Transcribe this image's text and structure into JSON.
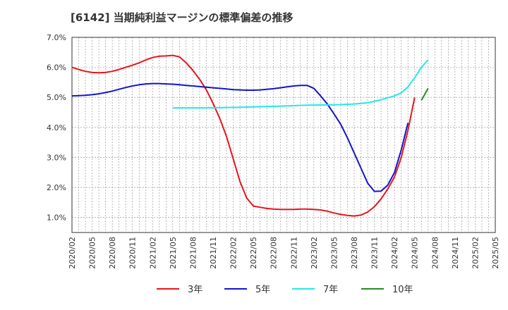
{
  "chart_data": {
    "type": "line",
    "title": "[6142]  当期純利益マージンの標準偏差の推移",
    "xlabel": "",
    "ylabel": "",
    "ylim": [
      0.5,
      7.0
    ],
    "y_ticks": [
      "1.0%",
      "2.0%",
      "3.0%",
      "4.0%",
      "5.0%",
      "6.0%",
      "7.0%"
    ],
    "x_ticks": [
      "2020/02",
      "2020/05",
      "2020/08",
      "2020/11",
      "2021/02",
      "2021/05",
      "2021/08",
      "2021/11",
      "2022/02",
      "2022/05",
      "2022/08",
      "2022/11",
      "2023/02",
      "2023/05",
      "2023/08",
      "2023/11",
      "2024/02",
      "2024/05",
      "2024/08",
      "2024/11",
      "2025/02",
      "2025/05"
    ],
    "grid": true,
    "legend_position": "bottom",
    "series": [
      {
        "name": "3年",
        "color": "#e8141b",
        "points": [
          [
            0,
            6.0
          ],
          [
            1,
            5.93
          ],
          [
            2,
            5.87
          ],
          [
            3,
            5.83
          ],
          [
            4,
            5.82
          ],
          [
            5,
            5.83
          ],
          [
            6,
            5.87
          ],
          [
            7,
            5.93
          ],
          [
            8,
            6.0
          ],
          [
            9,
            6.07
          ],
          [
            10,
            6.15
          ],
          [
            11,
            6.25
          ],
          [
            12,
            6.33
          ],
          [
            13,
            6.37
          ],
          [
            14,
            6.38
          ],
          [
            15,
            6.4
          ],
          [
            16,
            6.35
          ],
          [
            17,
            6.15
          ],
          [
            18,
            5.9
          ],
          [
            19,
            5.6
          ],
          [
            20,
            5.25
          ],
          [
            21,
            4.8
          ],
          [
            22,
            4.3
          ],
          [
            23,
            3.7
          ],
          [
            24,
            2.95
          ],
          [
            25,
            2.2
          ],
          [
            26,
            1.65
          ],
          [
            27,
            1.38
          ],
          [
            28,
            1.34
          ],
          [
            29,
            1.3
          ],
          [
            30,
            1.28
          ],
          [
            31,
            1.27
          ],
          [
            32,
            1.27
          ],
          [
            33,
            1.27
          ],
          [
            34,
            1.28
          ],
          [
            35,
            1.28
          ],
          [
            36,
            1.27
          ],
          [
            37,
            1.25
          ],
          [
            38,
            1.21
          ],
          [
            39,
            1.15
          ],
          [
            40,
            1.1
          ],
          [
            41,
            1.07
          ],
          [
            42,
            1.05
          ],
          [
            43,
            1.08
          ],
          [
            44,
            1.18
          ],
          [
            45,
            1.36
          ],
          [
            46,
            1.62
          ],
          [
            47,
            1.95
          ],
          [
            48,
            2.35
          ],
          [
            49,
            3.0
          ],
          [
            50,
            3.9
          ],
          [
            51,
            5.0
          ]
        ]
      },
      {
        "name": "5年",
        "color": "#1414c8",
        "points": [
          [
            0,
            5.05
          ],
          [
            1,
            5.06
          ],
          [
            2,
            5.07
          ],
          [
            3,
            5.09
          ],
          [
            4,
            5.12
          ],
          [
            5,
            5.16
          ],
          [
            6,
            5.21
          ],
          [
            7,
            5.27
          ],
          [
            8,
            5.33
          ],
          [
            9,
            5.38
          ],
          [
            10,
            5.42
          ],
          [
            11,
            5.45
          ],
          [
            12,
            5.46
          ],
          [
            13,
            5.46
          ],
          [
            14,
            5.45
          ],
          [
            15,
            5.44
          ],
          [
            16,
            5.42
          ],
          [
            17,
            5.4
          ],
          [
            18,
            5.38
          ],
          [
            19,
            5.36
          ],
          [
            20,
            5.34
          ],
          [
            21,
            5.32
          ],
          [
            22,
            5.3
          ],
          [
            23,
            5.28
          ],
          [
            24,
            5.26
          ],
          [
            25,
            5.25
          ],
          [
            26,
            5.24
          ],
          [
            27,
            5.24
          ],
          [
            28,
            5.25
          ],
          [
            29,
            5.27
          ],
          [
            30,
            5.29
          ],
          [
            31,
            5.32
          ],
          [
            32,
            5.35
          ],
          [
            33,
            5.38
          ],
          [
            34,
            5.4
          ],
          [
            35,
            5.4
          ],
          [
            36,
            5.3
          ],
          [
            37,
            5.05
          ],
          [
            38,
            4.78
          ],
          [
            39,
            4.45
          ],
          [
            40,
            4.1
          ],
          [
            41,
            3.65
          ],
          [
            42,
            3.15
          ],
          [
            43,
            2.65
          ],
          [
            44,
            2.15
          ],
          [
            45,
            1.87
          ],
          [
            46,
            1.88
          ],
          [
            47,
            2.08
          ],
          [
            48,
            2.5
          ],
          [
            49,
            3.25
          ],
          [
            50,
            4.15
          ]
        ]
      },
      {
        "name": "7年",
        "color": "#23e8e8",
        "points": [
          [
            15,
            4.65
          ],
          [
            20,
            4.65
          ],
          [
            25,
            4.67
          ],
          [
            30,
            4.7
          ],
          [
            35,
            4.74
          ],
          [
            38,
            4.75
          ],
          [
            40,
            4.76
          ],
          [
            42,
            4.78
          ],
          [
            44,
            4.82
          ],
          [
            46,
            4.92
          ],
          [
            48,
            5.05
          ],
          [
            49,
            5.15
          ],
          [
            50,
            5.35
          ],
          [
            51,
            5.65
          ],
          [
            52,
            6.0
          ],
          [
            53,
            6.25
          ]
        ]
      },
      {
        "name": "10年",
        "color": "#2a8a2a",
        "points": [
          [
            52,
            4.9
          ],
          [
            53,
            5.3
          ]
        ]
      }
    ]
  }
}
